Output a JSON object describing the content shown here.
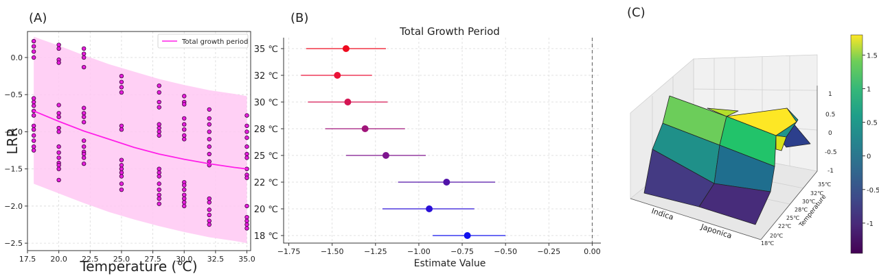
{
  "chart_data": [
    {
      "panel": "(A)",
      "type": "scatter",
      "title": "",
      "xlabel": "Temperature (℃)",
      "ylabel": "LRR",
      "xlim": [
        17.5,
        35.3
      ],
      "ylim": [
        -2.6,
        0.35
      ],
      "xticks": [
        "17.5",
        "20.0",
        "22.5",
        "25.0",
        "27.5",
        "30.0",
        "32.5",
        "35.0"
      ],
      "yticks": [
        "0.0",
        "−0.5",
        "−1.0",
        "−1.5",
        "−2.0",
        "−2.5"
      ],
      "legend": [
        "Total growth period"
      ],
      "legend_position": "top-right",
      "line_color": "#ff1ee8",
      "band_color": "#ffc8f3",
      "point_color": "#e61edc",
      "points": [
        {
          "x": 18,
          "y": [
            0.22,
            0.15,
            0.08,
            0.0,
            -0.55,
            -0.6,
            -0.65,
            -0.72,
            -0.78,
            -0.92,
            -0.97,
            -1.05,
            -1.12,
            -1.2,
            -1.25
          ]
        },
        {
          "x": 20,
          "y": [
            0.17,
            0.12,
            -0.03,
            -0.07,
            -0.64,
            -0.75,
            -0.8,
            -0.95,
            -1.0,
            -1.2,
            -1.28,
            -1.35,
            -1.42,
            -1.45,
            -1.5,
            -1.65
          ]
        },
        {
          "x": 22,
          "y": [
            0.12,
            0.05,
            0.0,
            -0.13,
            -0.68,
            -0.75,
            -0.8,
            -0.87,
            -1.12,
            -1.2,
            -1.27,
            -1.3,
            -1.35,
            -1.43
          ]
        },
        {
          "x": 25,
          "y": [
            -0.25,
            -0.33,
            -0.4,
            -0.47,
            -0.92,
            -0.97,
            -1.38,
            -1.45,
            -1.5,
            -1.55,
            -1.6,
            -1.7,
            -1.78
          ]
        },
        {
          "x": 28,
          "y": [
            -0.38,
            -0.47,
            -0.6,
            -0.67,
            -0.9,
            -0.95,
            -1.0,
            -1.05,
            -1.5,
            -1.55,
            -1.6,
            -1.7,
            -1.78,
            -1.85,
            -1.9,
            -1.97
          ]
        },
        {
          "x": 30,
          "y": [
            -0.52,
            -0.6,
            -0.63,
            -0.82,
            -0.9,
            -0.97,
            -1.05,
            -1.1,
            -1.68,
            -1.72,
            -1.78,
            -1.85,
            -1.9,
            -1.95,
            -2.0
          ]
        },
        {
          "x": 32,
          "y": [
            -0.7,
            -0.82,
            -0.9,
            -1.0,
            -1.1,
            -1.2,
            -1.3,
            -1.4,
            -1.45,
            -1.9,
            -1.95,
            -2.05,
            -2.12,
            -2.2,
            -2.25
          ]
        },
        {
          "x": 35,
          "y": [
            -0.78,
            -0.92,
            -1.0,
            -1.08,
            -1.2,
            -1.3,
            -1.35,
            -1.5,
            -1.58,
            -1.62,
            -2.0,
            -2.15,
            -2.2,
            -2.25,
            -2.3
          ]
        }
      ],
      "fit_line": {
        "x": [
          18,
          20,
          22,
          24,
          26,
          28,
          30,
          32,
          34,
          35
        ],
        "y": [
          -0.72,
          -0.86,
          -0.99,
          -1.1,
          -1.21,
          -1.3,
          -1.37,
          -1.43,
          -1.48,
          -1.5
        ]
      },
      "band_upper": {
        "x": [
          18,
          20,
          22,
          24,
          26,
          28,
          30,
          32,
          34,
          35
        ],
        "y": [
          0.28,
          0.16,
          0.03,
          -0.09,
          -0.19,
          -0.29,
          -0.37,
          -0.44,
          -0.49,
          -0.52
        ]
      },
      "band_lower": {
        "x": [
          18,
          20,
          22,
          24,
          26,
          28,
          30,
          32,
          34,
          35
        ],
        "y": [
          -1.7,
          -1.83,
          -1.96,
          -2.08,
          -2.18,
          -2.27,
          -2.35,
          -2.42,
          -2.47,
          -2.5
        ]
      }
    },
    {
      "panel": "(B)",
      "type": "forest",
      "title": "Total Growth Period",
      "xlabel": "Estimate Value",
      "ylabel": "",
      "xlim": [
        -1.78,
        0.05
      ],
      "xticks": [
        "−1.75",
        "−1.50",
        "−1.25",
        "−1.00",
        "−0.75",
        "−0.50",
        "−0.25",
        "0.00"
      ],
      "reference_line": 0.0,
      "rows": [
        {
          "label": "35 ℃",
          "estimate": -1.42,
          "lower": -1.65,
          "upper": -1.19,
          "color": "#ee0a1e"
        },
        {
          "label": "32 ℃",
          "estimate": -1.47,
          "lower": -1.68,
          "upper": -1.27,
          "color": "#ea1237"
        },
        {
          "label": "30 ℃",
          "estimate": -1.41,
          "lower": -1.64,
          "upper": -1.18,
          "color": "#d41452"
        },
        {
          "label": "28 ℃",
          "estimate": -1.31,
          "lower": -1.54,
          "upper": -1.08,
          "color": "#a0147a"
        },
        {
          "label": "25 ℃",
          "estimate": -1.19,
          "lower": -1.42,
          "upper": -0.96,
          "color": "#7e148e"
        },
        {
          "label": "22 ℃",
          "estimate": -0.84,
          "lower": -1.12,
          "upper": -0.56,
          "color": "#5012a8"
        },
        {
          "label": "20 ℃",
          "estimate": -0.94,
          "lower": -1.21,
          "upper": -0.68,
          "color": "#2a10d8"
        },
        {
          "label": "18 ℃",
          "estimate": -0.72,
          "lower": -0.92,
          "upper": -0.5,
          "color": "#1010ee"
        }
      ]
    },
    {
      "panel": "(C)",
      "type": "surface3d",
      "title": "",
      "x_categories": [
        "Indica",
        "Japonica"
      ],
      "y_label": "Temperature",
      "y_ticks": [
        "18℃",
        "20℃",
        "22℃",
        "25℃",
        "28℃",
        "30℃",
        "32℃",
        "35℃"
      ],
      "z_ticks": [
        "1",
        "0.5",
        "0",
        "-0.5",
        "-1"
      ],
      "colorbar_ticks": [
        "1.5",
        "1",
        "0.5",
        "0",
        "-0.5",
        "-1"
      ],
      "colorbar_range": [
        -1.45,
        1.8
      ],
      "colormap": "viridis"
    }
  ]
}
